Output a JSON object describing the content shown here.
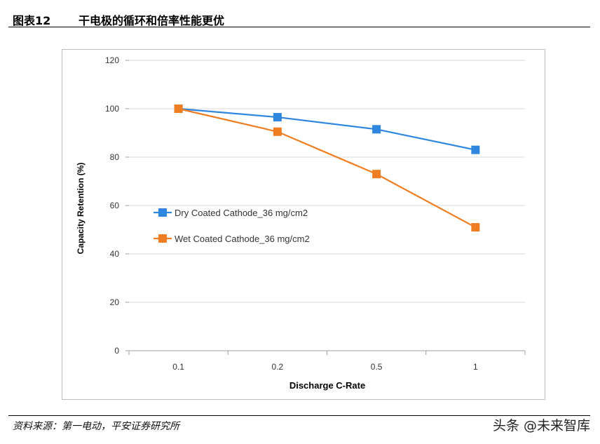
{
  "figure": {
    "number": "图表12",
    "title": "干电极的循环和倍率性能更优"
  },
  "source": "资料来源：第一电动，平安证券研究所",
  "watermark": "头条 @未来智库",
  "chart_data": {
    "type": "line",
    "title": "",
    "xlabel": "Discharge C-Rate",
    "ylabel": "Capacity Retention (%)",
    "categories": [
      "0.1",
      "0.2",
      "0.5",
      "1"
    ],
    "ylim": [
      0,
      120
    ],
    "yticks": [
      0,
      20,
      40,
      60,
      80,
      100,
      120
    ],
    "grid": true,
    "legend_position": "center-left",
    "series": [
      {
        "name": "Dry Coated Cathode_36 mg/cm2",
        "color": "#2E86DE",
        "marker": "square",
        "values": [
          100,
          96.5,
          91.5,
          83
        ]
      },
      {
        "name": "Wet Coated Cathode_36 mg/cm2",
        "color": "#EF7D22",
        "marker": "square",
        "values": [
          100,
          90.5,
          73,
          51
        ]
      }
    ]
  }
}
